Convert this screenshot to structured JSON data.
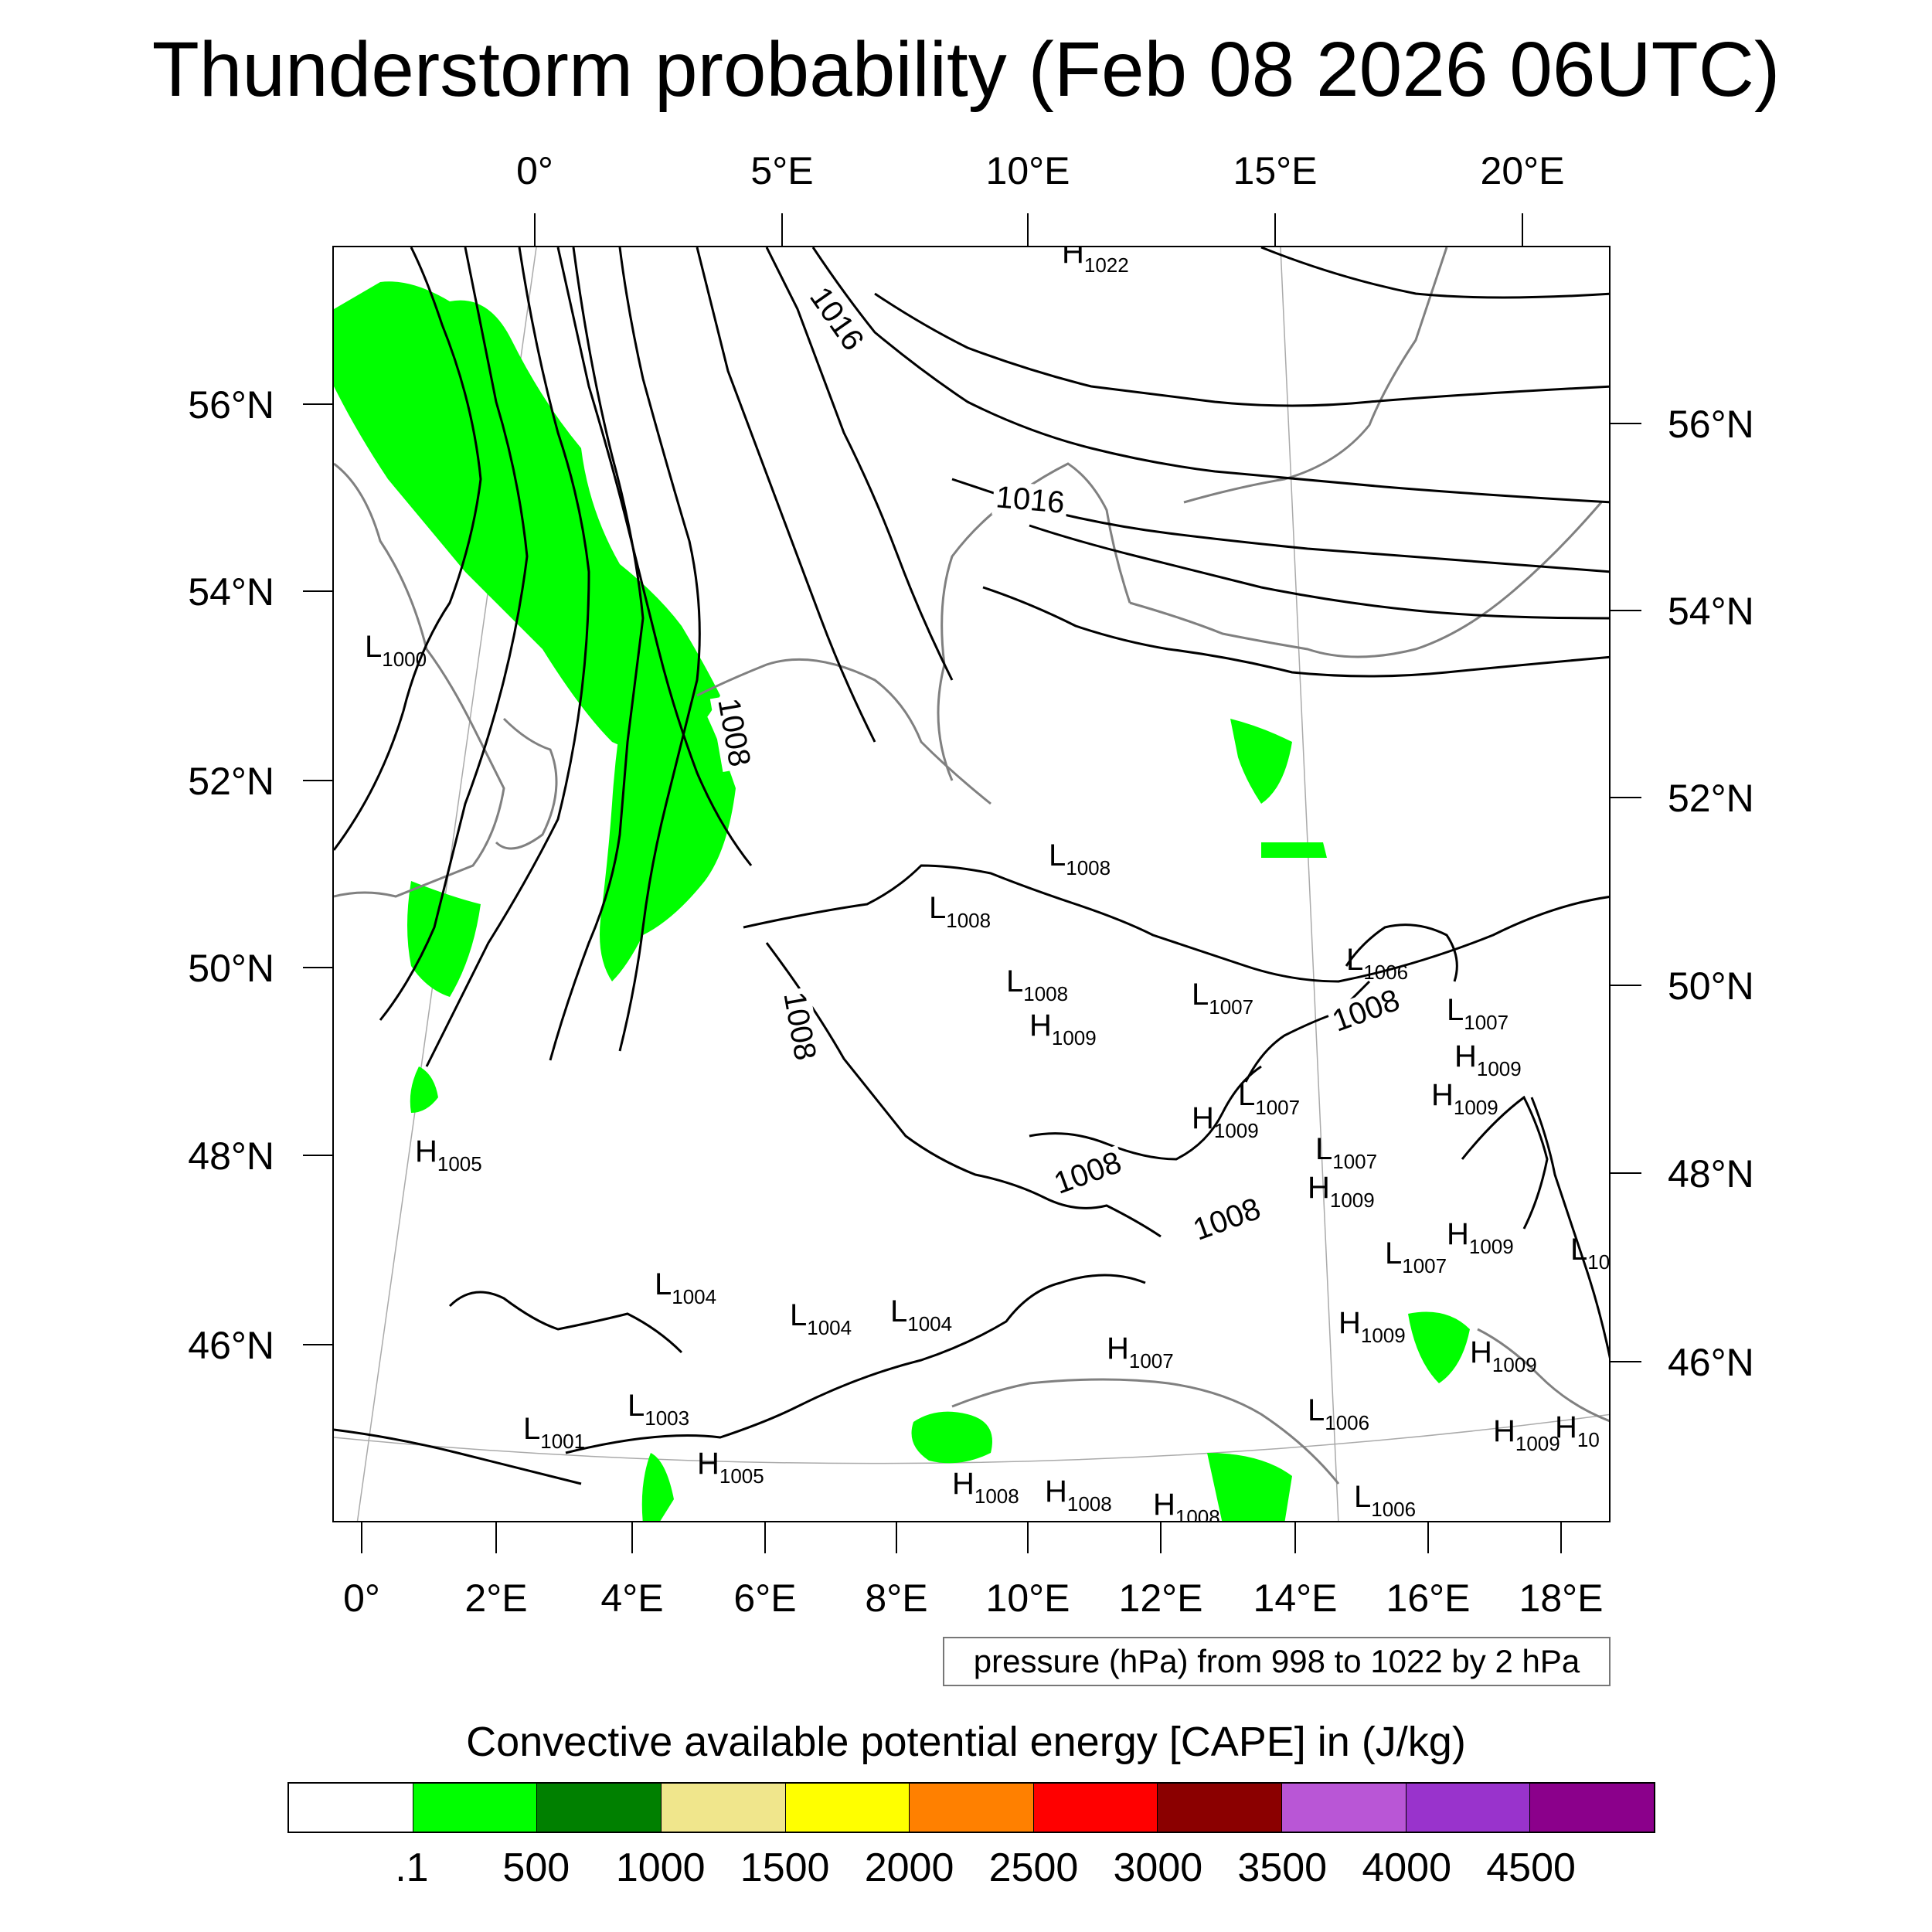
{
  "title": "Thunderstorm probability (Feb 08 2026 06UTC)",
  "top_lon_labels": [
    "0°",
    "5°E",
    "10°E",
    "15°E",
    "20°E"
  ],
  "bottom_lon_labels": [
    "0°",
    "2°E",
    "4°E",
    "6°E",
    "8°E",
    "10°E",
    "12°E",
    "14°E",
    "16°E",
    "18°E"
  ],
  "left_lat_labels": [
    "56°N",
    "54°N",
    "52°N",
    "50°N",
    "48°N",
    "46°N"
  ],
  "right_lat_labels": [
    "56°N",
    "54°N",
    "52°N",
    "50°N",
    "48°N",
    "46°N"
  ],
  "contour_labels": [
    "1016",
    "1016",
    "1008",
    "1008",
    "1008",
    "1008",
    "1008"
  ],
  "pressure_centers": [
    {
      "letter": "H",
      "value": "1022"
    },
    {
      "letter": "L",
      "value": "1000"
    },
    {
      "letter": "L",
      "value": "1008"
    },
    {
      "letter": "L",
      "value": "1008"
    },
    {
      "letter": "L",
      "value": "1008"
    },
    {
      "letter": "H",
      "value": "1009"
    },
    {
      "letter": "L",
      "value": "1007"
    },
    {
      "letter": "L",
      "value": "1006"
    },
    {
      "letter": "L",
      "value": "1007"
    },
    {
      "letter": "H",
      "value": "1009"
    },
    {
      "letter": "H",
      "value": "1009"
    },
    {
      "letter": "L",
      "value": "1007"
    },
    {
      "letter": "H",
      "value": "1009"
    },
    {
      "letter": "L",
      "value": "1007"
    },
    {
      "letter": "H",
      "value": "1009"
    },
    {
      "letter": "H",
      "value": "1009"
    },
    {
      "letter": "L",
      "value": "1007"
    },
    {
      "letter": "H",
      "value": "1005"
    },
    {
      "letter": "L",
      "value": "1004"
    },
    {
      "letter": "L",
      "value": "1004"
    },
    {
      "letter": "L",
      "value": "1004"
    },
    {
      "letter": "H",
      "value": "1007"
    },
    {
      "letter": "H",
      "value": "1009"
    },
    {
      "letter": "H",
      "value": "1009"
    },
    {
      "letter": "L",
      "value": "1003"
    },
    {
      "letter": "L",
      "value": "1001"
    },
    {
      "letter": "H",
      "value": "1005"
    },
    {
      "letter": "L",
      "value": "1006"
    },
    {
      "letter": "H",
      "value": "1008"
    },
    {
      "letter": "H",
      "value": "1008"
    },
    {
      "letter": "H",
      "value": "1008"
    },
    {
      "letter": "L",
      "value": "1006"
    },
    {
      "letter": "H",
      "value": "1009"
    },
    {
      "letter": "H",
      "value": "10"
    },
    {
      "letter": "L",
      "value": "10"
    }
  ],
  "pressure_info": "pressure (hPa) from 998 to 1022 by 2 hPa",
  "legend": {
    "title": "Convective available potential energy [CAPE] in (J/kg)",
    "colors": [
      "#ffffff",
      "#00ff00",
      "#008000",
      "#f0e68c",
      "#ffff00",
      "#ff8000",
      "#ff0000",
      "#8b0000",
      "#b956d6",
      "#9933cc",
      "#8b008b"
    ],
    "labels": [
      ".1",
      "500",
      "1000",
      "1500",
      "2000",
      "2500",
      "3000",
      "3500",
      "4000",
      "4500"
    ]
  },
  "colors": {
    "cape_low": "#00ff00",
    "coast": "#808080",
    "isobar": "#000000"
  }
}
